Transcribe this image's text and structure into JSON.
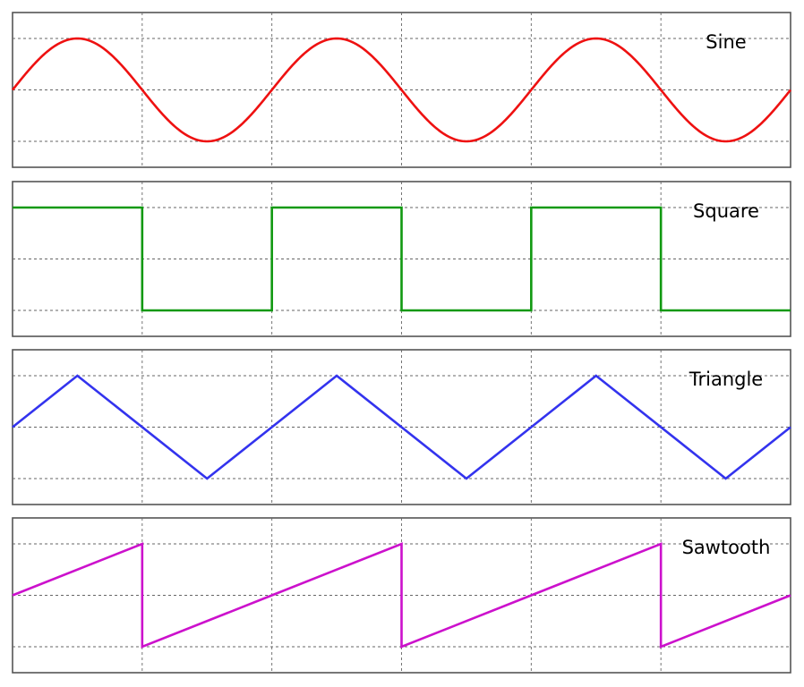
{
  "chart_data": [
    {
      "type": "line",
      "label": "Sine",
      "color": "#ee1111",
      "shape": "sine",
      "periods": 3,
      "start_value": 0,
      "ylim": [
        -1.5,
        1.5
      ],
      "y_gridlines": [
        -1,
        0,
        1
      ],
      "x_gridlines_per_period": 2,
      "grid": true,
      "legend_position": "top-right"
    },
    {
      "type": "line",
      "label": "Square",
      "color": "#119911",
      "shape": "square",
      "periods": 3,
      "start_value": 1,
      "ylim": [
        -1.5,
        1.5
      ],
      "y_gridlines": [
        -1,
        0,
        1
      ],
      "x_gridlines_per_period": 2,
      "grid": true,
      "legend_position": "top-right"
    },
    {
      "type": "line",
      "label": "Triangle",
      "color": "#3333ee",
      "shape": "triangle",
      "periods": 3,
      "start_value": 0,
      "ylim": [
        -1.5,
        1.5
      ],
      "y_gridlines": [
        -1,
        0,
        1
      ],
      "x_gridlines_per_period": 2,
      "grid": true,
      "legend_position": "top-right"
    },
    {
      "type": "line",
      "label": "Sawtooth",
      "color": "#cc11cc",
      "shape": "sawtooth",
      "periods": 3,
      "start_value": 0,
      "ylim": [
        -1.5,
        1.5
      ],
      "y_gridlines": [
        -1,
        0,
        1
      ],
      "x_gridlines_per_period": 2,
      "grid": true,
      "legend_position": "top-right"
    }
  ]
}
